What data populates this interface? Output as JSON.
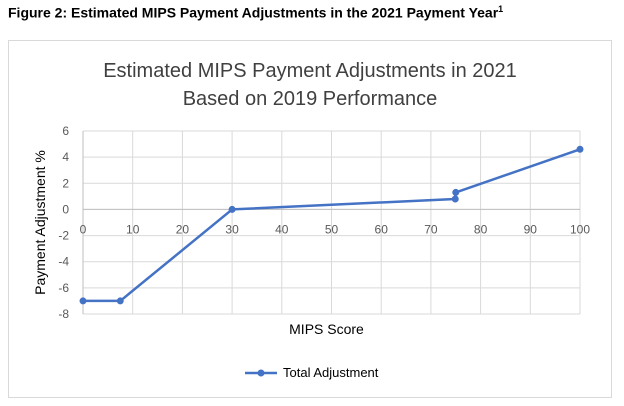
{
  "figure_caption": "Figure 2:  Estimated MIPS Payment Adjustments in the 2021 Payment Year",
  "figure_caption_sup": "1",
  "chart_data": {
    "type": "line",
    "title_line1": "Estimated MIPS Payment Adjustments in 2021",
    "title_line2": "Based on 2019 Performance",
    "xlabel": "MIPS Score",
    "ylabel": "Payment Adjustment %",
    "xlim": [
      0,
      100
    ],
    "ylim": [
      -8,
      6
    ],
    "x_ticks": [
      0,
      10,
      20,
      30,
      40,
      50,
      60,
      70,
      80,
      90,
      100
    ],
    "y_ticks": [
      6,
      4,
      2,
      0,
      -2,
      -4,
      -6,
      -8
    ],
    "grid": true,
    "legend_position": "bottom",
    "series": [
      {
        "name": "Total Adjustment",
        "color": "#4472c4",
        "x": [
          0,
          7.5,
          30,
          74.9,
          75,
          100
        ],
        "y": [
          -7,
          -7,
          0,
          0.8,
          1.3,
          4.6
        ]
      }
    ]
  }
}
